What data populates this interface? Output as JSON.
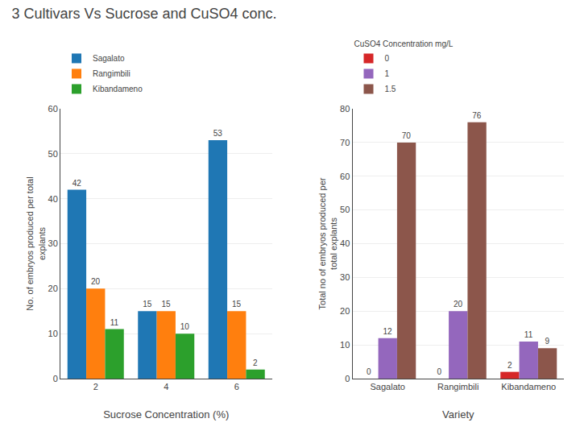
{
  "title": "3 Cultivars Vs Sucrose and CuSO4 conc.",
  "chart_data": [
    {
      "type": "bar",
      "xlabel": "Sucrose Concentration (%)",
      "ylabel": "No. of embryos produced per total\nexplants",
      "categories": [
        "2",
        "4",
        "6"
      ],
      "series": [
        {
          "name": "Sagalato",
          "values": [
            42,
            15,
            53
          ]
        },
        {
          "name": "Rangimbili",
          "values": [
            20,
            15,
            15
          ]
        },
        {
          "name": "Kibandameno",
          "values": [
            11,
            10,
            2
          ]
        }
      ],
      "ylim": [
        0,
        60
      ],
      "yticks": [
        0,
        10,
        20,
        30,
        40,
        50,
        60
      ],
      "grid": true,
      "data_labels": true
    },
    {
      "type": "bar",
      "xlabel": "Variety",
      "ylabel": "Total no of embryos produced per\ntotal explants",
      "legend_title": "CuSO4 Concentration mg/L",
      "categories": [
        "Sagalato",
        "Rangimbili",
        "Kibandameno"
      ],
      "series": [
        {
          "name": "0",
          "values": [
            0,
            0,
            2
          ]
        },
        {
          "name": "1",
          "values": [
            12,
            20,
            11
          ]
        },
        {
          "name": "1.5",
          "values": [
            70,
            76,
            9
          ]
        }
      ],
      "ylim": [
        0,
        80
      ],
      "yticks": [
        0,
        10,
        20,
        30,
        40,
        50,
        60,
        70,
        80
      ],
      "grid": true,
      "data_labels": true
    }
  ]
}
